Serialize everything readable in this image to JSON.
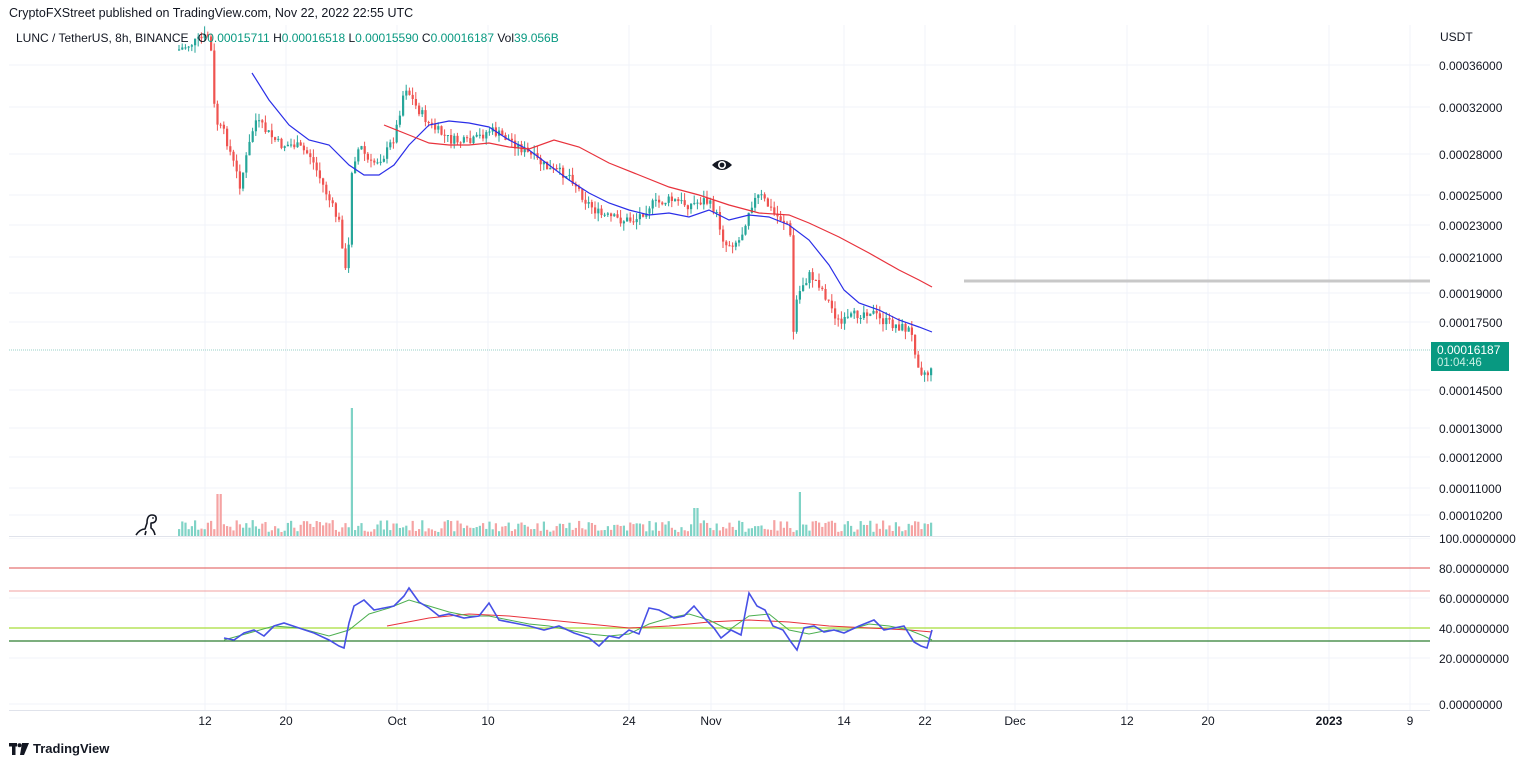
{
  "header": {
    "published": "CryptoFXStreet published on TradingView.com, Nov 22, 2022 22:55 UTC"
  },
  "legend": {
    "symbol": "LUNC / TetherUS, 8h, BINANCE",
    "o_label": "O",
    "o_value": "0.00015711",
    "h_label": "H",
    "h_value": "0.00016518",
    "l_label": "L",
    "l_value": "0.00015590",
    "c_label": "C",
    "c_value": "0.00016187",
    "vol_label": "Vol",
    "vol_value": "39.056B"
  },
  "price_axis": {
    "title": "USDT",
    "ticks": [
      "0.00036000",
      "0.00032000",
      "0.00028000",
      "0.00025000",
      "0.00023000",
      "0.00021000",
      "0.00019000",
      "0.00017500",
      "0.00014500",
      "0.00013000",
      "0.00012000",
      "0.00011000",
      "0.00010200"
    ]
  },
  "indicator_axis": {
    "ticks": [
      "100.00000000",
      "80.00000000",
      "60.00000000",
      "40.00000000",
      "20.00000000",
      "0.00000000"
    ]
  },
  "time_axis": {
    "ticks": [
      "12",
      "20",
      "Oct",
      "10",
      "24",
      "Nov",
      "14",
      "22",
      "Dec",
      "12",
      "20",
      "2023",
      "9"
    ]
  },
  "current_price": {
    "value": "0.00016187",
    "countdown": "01:04:46"
  },
  "footer": {
    "brand": "TradingView"
  },
  "colors": {
    "up": "#26a69a",
    "down": "#ef5350",
    "up_volume": "#7fd3c6",
    "down_volume": "#f5a3a3",
    "ma_fast": "#2a2ee8",
    "ma_slow": "#e8323c",
    "rsi": "#4750e6",
    "rsi_ma_green": "#4caf50",
    "badge": "#089981"
  },
  "icons": {
    "annotation": "eye-icon",
    "watermark": "dinosaur-icon",
    "logo": "tradingview-logo-icon"
  }
}
